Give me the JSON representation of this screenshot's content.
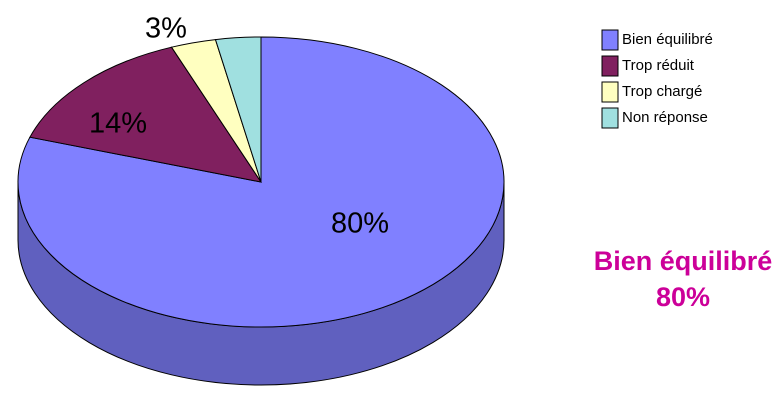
{
  "chart_data": {
    "type": "pie3d",
    "categories": [
      "Bien équilibré",
      "Trop réduit",
      "Trop chargé",
      "Non réponse"
    ],
    "values": [
      80,
      14,
      3,
      3
    ],
    "value_labels": [
      "80%",
      "14%",
      "3%",
      null
    ],
    "colors": [
      "#8080ff",
      "#80205f",
      "#ffffc0",
      "#a0e0e0"
    ],
    "legend": "right",
    "annotation": {
      "title": "Bien équilibré",
      "value": "80%"
    }
  }
}
